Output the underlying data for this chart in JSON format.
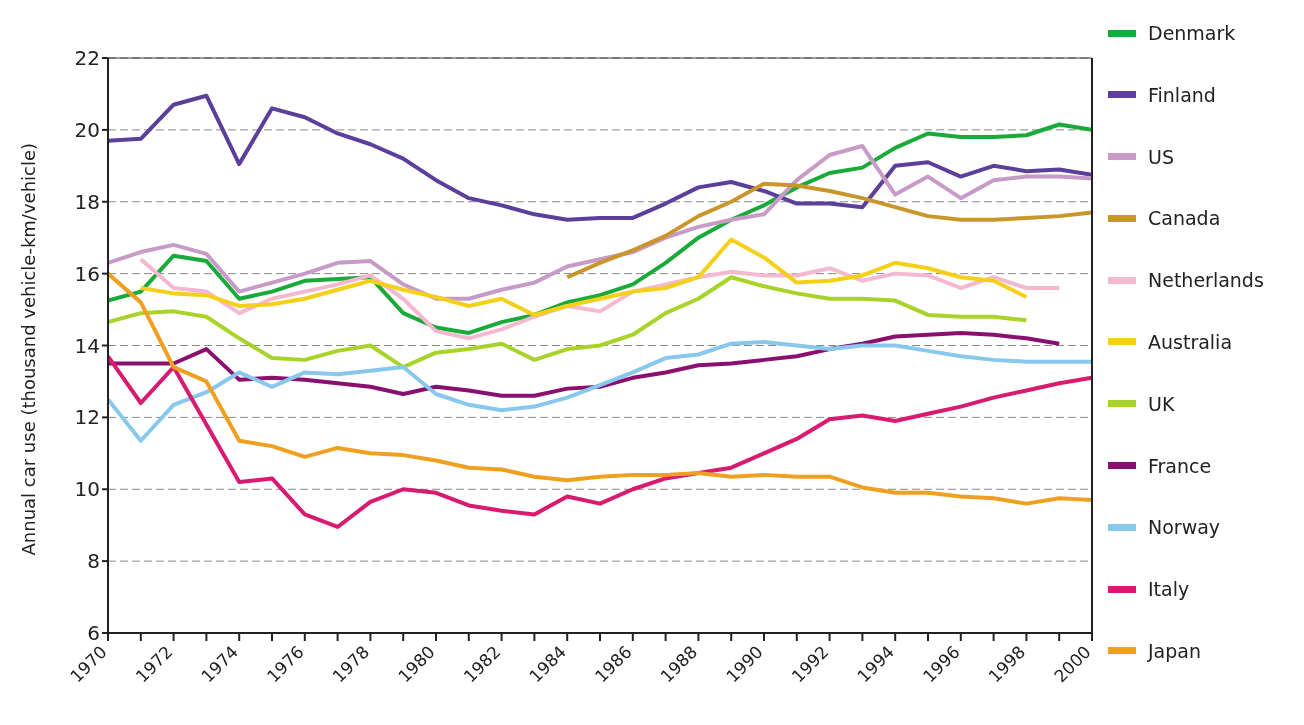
{
  "chart_data": {
    "type": "line",
    "ylabel": "Annual car use (thousand vehicle-km/vehicle)",
    "x": [
      1970,
      1971,
      1972,
      1973,
      1974,
      1975,
      1976,
      1977,
      1978,
      1979,
      1980,
      1981,
      1982,
      1983,
      1984,
      1985,
      1986,
      1987,
      1988,
      1989,
      1990,
      1991,
      1992,
      1993,
      1994,
      1995,
      1996,
      1997,
      1998,
      1999,
      2000
    ],
    "xlim": [
      1970,
      2000
    ],
    "xticks": [
      1970,
      {
        "value": 1971,
        "label": null
      },
      1972,
      {
        "value": 1973,
        "label": null
      },
      1974,
      {
        "value": 1975,
        "label": null
      },
      1976,
      {
        "value": 1977,
        "label": null
      },
      1978,
      {
        "value": 1979,
        "label": null
      },
      1980,
      {
        "value": 1981,
        "label": null
      },
      1982,
      {
        "value": 1983,
        "label": null
      },
      1984,
      {
        "value": 1985,
        "label": null
      },
      1986,
      {
        "value": 1987,
        "label": null
      },
      1988,
      {
        "value": 1989,
        "label": null
      },
      1990,
      {
        "value": 1991,
        "label": null
      },
      1992,
      {
        "value": 1993,
        "label": null
      },
      1994,
      {
        "value": 1995,
        "label": null
      },
      1996,
      {
        "value": 1997,
        "label": null
      },
      1998,
      {
        "value": 1999,
        "label": null
      },
      2000
    ],
    "ylim": [
      6,
      22
    ],
    "yticks": [
      6,
      8,
      10,
      12,
      14,
      16,
      18,
      20,
      22
    ],
    "grid": "y",
    "legend": "right",
    "marker": "none",
    "line_style": "solid",
    "series": [
      {
        "name": "Denmark",
        "color": "#1aaa3a",
        "values": [
          15.25,
          15.5,
          16.5,
          16.35,
          15.3,
          15.5,
          15.8,
          15.85,
          15.9,
          14.9,
          14.5,
          14.35,
          14.65,
          14.85,
          15.2,
          15.4,
          15.7,
          16.3,
          17.0,
          17.5,
          17.9,
          18.4,
          18.8,
          18.95,
          19.5,
          19.9,
          19.8,
          19.8,
          19.85,
          20.15,
          20.0
        ]
      },
      {
        "name": "Finland",
        "color": "#5b3f9a",
        "values": [
          19.7,
          19.75,
          20.7,
          20.95,
          19.05,
          20.6,
          20.35,
          19.9,
          19.6,
          19.2,
          18.6,
          18.1,
          17.9,
          17.65,
          17.5,
          17.55,
          17.55,
          17.95,
          18.4,
          18.55,
          18.3,
          17.95,
          17.95,
          17.85,
          19.0,
          19.1,
          18.7,
          19.0,
          18.85,
          18.9,
          18.75
        ]
      },
      {
        "name": "US",
        "color": "#c89ac8",
        "values": [
          16.3,
          16.6,
          16.8,
          16.55,
          15.5,
          15.75,
          16.0,
          16.3,
          16.35,
          15.7,
          15.3,
          15.3,
          15.55,
          15.75,
          16.2,
          16.4,
          16.6,
          17.0,
          17.3,
          17.5,
          17.65,
          18.6,
          19.3,
          19.55,
          18.2,
          18.7,
          18.1,
          18.6,
          18.7,
          18.7,
          18.65
        ]
      },
      {
        "name": "Canada",
        "color": "#c8962a",
        "values": [
          null,
          null,
          null,
          null,
          null,
          null,
          null,
          null,
          null,
          null,
          null,
          null,
          null,
          null,
          15.9,
          16.3,
          16.65,
          17.05,
          17.6,
          18.0,
          18.5,
          18.45,
          18.3,
          18.1,
          17.85,
          17.6,
          17.5,
          17.5,
          17.55,
          17.6,
          17.7
        ]
      },
      {
        "name": "Netherlands",
        "color": "#f4b8d0",
        "values": [
          null,
          16.4,
          15.6,
          15.5,
          14.9,
          15.3,
          15.5,
          15.7,
          15.95,
          15.3,
          14.4,
          14.2,
          14.45,
          14.8,
          15.1,
          14.95,
          15.5,
          15.7,
          15.9,
          16.05,
          15.95,
          15.95,
          16.15,
          15.8,
          16.0,
          15.95,
          15.6,
          15.9,
          15.6,
          15.6,
          null
        ]
      },
      {
        "name": "Australia",
        "color": "#f5d01a",
        "values": [
          null,
          15.6,
          15.45,
          15.4,
          15.1,
          15.15,
          15.3,
          15.55,
          15.8,
          15.55,
          15.35,
          15.1,
          15.3,
          14.85,
          15.1,
          15.3,
          15.5,
          15.6,
          15.9,
          16.95,
          16.45,
          15.75,
          15.8,
          15.95,
          16.3,
          16.15,
          15.9,
          15.8,
          15.35,
          null,
          null
        ]
      },
      {
        "name": "UK",
        "color": "#a8d42a",
        "values": [
          14.65,
          14.9,
          14.95,
          14.8,
          14.2,
          13.65,
          13.6,
          13.85,
          14.0,
          13.4,
          13.8,
          13.9,
          14.05,
          13.6,
          13.9,
          14.0,
          14.3,
          14.9,
          15.3,
          15.9,
          15.65,
          15.45,
          15.3,
          15.3,
          15.25,
          14.85,
          14.8,
          14.8,
          14.7,
          null,
          null
        ]
      },
      {
        "name": "France",
        "color": "#8a1070",
        "values": [
          13.5,
          13.5,
          13.5,
          13.9,
          13.05,
          13.1,
          13.05,
          12.95,
          12.85,
          12.65,
          12.85,
          12.75,
          12.6,
          12.6,
          12.8,
          12.85,
          13.1,
          13.25,
          13.45,
          13.5,
          13.6,
          13.7,
          13.9,
          14.05,
          14.25,
          14.3,
          14.35,
          14.3,
          14.2,
          14.05,
          null
        ]
      },
      {
        "name": "Norway",
        "color": "#88c8ec",
        "values": [
          12.5,
          11.35,
          12.35,
          12.7,
          13.25,
          12.85,
          13.25,
          13.2,
          13.3,
          13.4,
          12.65,
          12.35,
          12.2,
          12.3,
          12.55,
          12.9,
          13.25,
          13.65,
          13.75,
          14.05,
          14.1,
          14.0,
          13.9,
          14.0,
          14.0,
          13.85,
          13.7,
          13.6,
          13.55,
          13.55,
          13.55
        ]
      },
      {
        "name": "Italy",
        "color": "#d81a70",
        "values": [
          13.7,
          12.4,
          13.4,
          11.8,
          10.2,
          10.3,
          9.3,
          8.95,
          9.65,
          10.0,
          9.9,
          9.55,
          9.4,
          9.3,
          9.8,
          9.6,
          10.0,
          10.3,
          10.45,
          10.6,
          11.0,
          11.4,
          11.95,
          12.05,
          11.9,
          12.1,
          12.3,
          12.55,
          12.75,
          12.95,
          13.1
        ]
      },
      {
        "name": "Japan",
        "color": "#f0a020",
        "values": [
          16.0,
          15.2,
          13.4,
          13.0,
          11.35,
          11.2,
          10.9,
          11.15,
          11.0,
          10.95,
          10.8,
          10.6,
          10.55,
          10.35,
          10.25,
          10.35,
          10.4,
          10.4,
          10.45,
          10.35,
          10.4,
          10.35,
          10.35,
          10.05,
          9.9,
          9.9,
          9.8,
          9.75,
          9.6,
          9.75,
          9.7
        ]
      }
    ]
  }
}
